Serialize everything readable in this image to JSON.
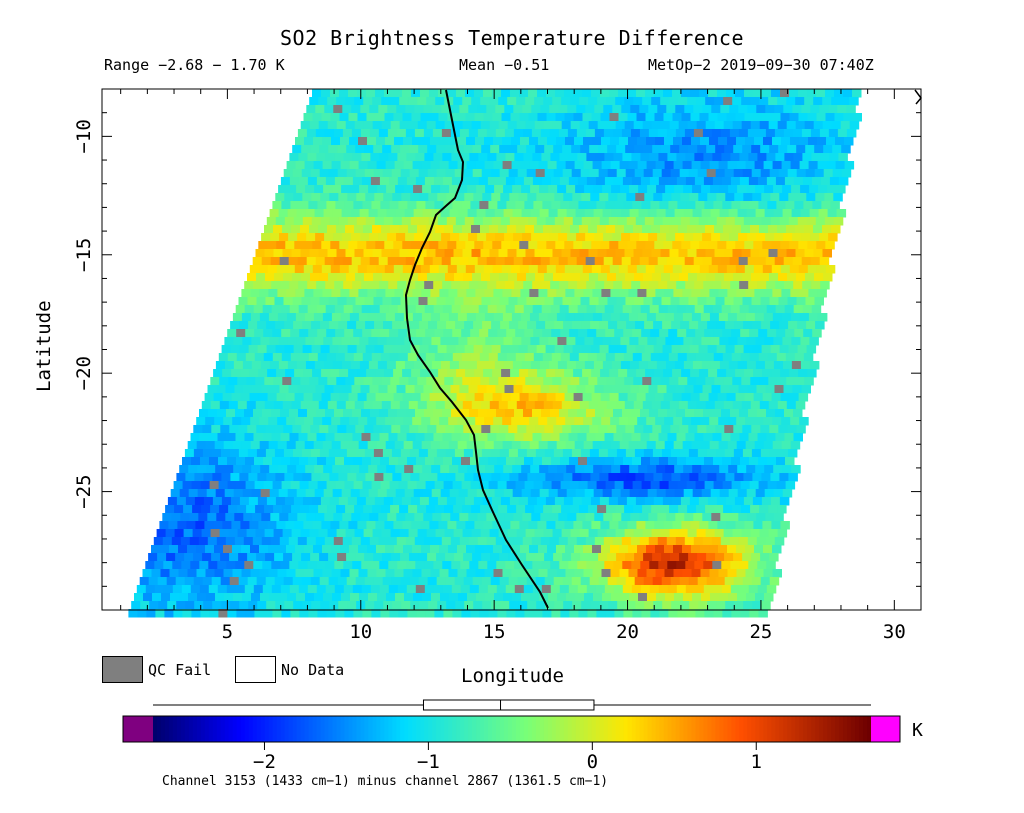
{
  "header": {
    "title": "SO2 Brightness Temperature Difference",
    "range": "Range −2.68 − 1.70 K",
    "mean": "Mean −0.51",
    "satellite": "MetOp−2 2019−09−30 07:40Z"
  },
  "map": {
    "x_label": "Longitude",
    "y_label": "Latitude",
    "x_ticks": [
      "5",
      "10",
      "15",
      "20",
      "25",
      "30"
    ],
    "y_ticks": [
      "−10",
      "−15",
      "−20",
      "−25"
    ],
    "xlim": [
      0.3,
      31
    ],
    "ylim": [
      -30,
      -8
    ]
  },
  "legend": {
    "qc_fail": "QC Fail",
    "no_data": "No Data",
    "qc_color": "#7f7f7f"
  },
  "colorbar": {
    "unit": "K",
    "ticks": [
      "−2",
      "−1",
      "0",
      "1"
    ],
    "range": [
      -2.68,
      1.7
    ],
    "note": "Channel 3153 (1433 cm−1) minus channel 2867 (1361.5 cm−1)",
    "under_color": "#7f0080",
    "over_color": "#ff00ff",
    "box_stats": {
      "min": -2.68,
      "q1": -1.03,
      "median": -0.56,
      "q3": 0.01,
      "max": 1.7
    }
  }
}
